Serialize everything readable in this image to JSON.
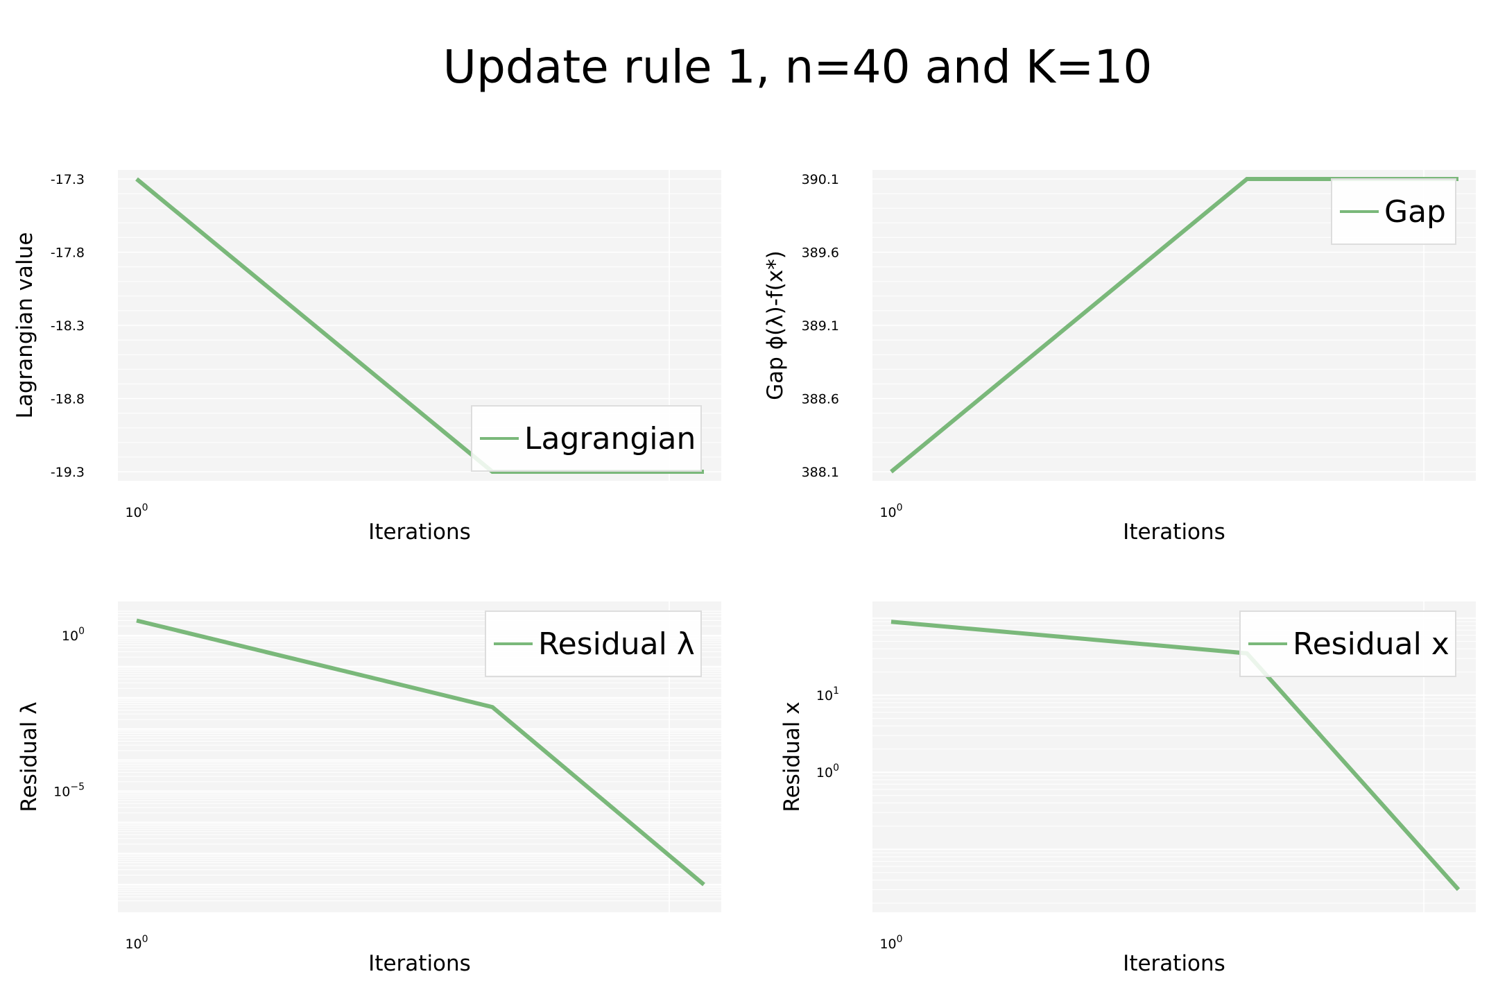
{
  "title": "Update rule 1, n=40 and K=10",
  "colors": {
    "line": "#7ab87a",
    "panel_bg": "#f4f4f4",
    "grid": "#ffffff"
  },
  "chart_data": [
    {
      "type": "line",
      "xlabel": "Iterations",
      "ylabel": "Lagrangian value",
      "xscale": "log",
      "yscale": "linear",
      "x_tick_labels": [
        "10^0"
      ],
      "y_tick_labels": [
        "-17.3",
        "-17.8",
        "-18.3",
        "-18.8",
        "-19.3"
      ],
      "ylim": [
        -19.3,
        -17.3
      ],
      "grid": true,
      "legend": "lower right",
      "series": [
        {
          "name": "Lagrangian",
          "x": [
            1,
            2,
            3
          ],
          "y": [
            -17.3,
            -19.3,
            -19.3
          ]
        }
      ]
    },
    {
      "type": "line",
      "xlabel": "Iterations",
      "ylabel": "Gap ϕ(λ)-f(x*)",
      "xscale": "log",
      "yscale": "linear",
      "x_tick_labels": [
        "10^0"
      ],
      "y_tick_labels": [
        "390.1",
        "389.6",
        "389.1",
        "388.6",
        "388.1"
      ],
      "ylim": [
        388.1,
        390.1
      ],
      "grid": true,
      "legend": "upper right",
      "series": [
        {
          "name": "Gap",
          "x": [
            1,
            2,
            3
          ],
          "y": [
            388.1,
            390.1,
            390.1
          ]
        }
      ]
    },
    {
      "type": "line",
      "xlabel": "Iterations",
      "ylabel": "Residual λ",
      "xscale": "log",
      "yscale": "log",
      "x_tick_labels": [
        "10^0"
      ],
      "y_tick_labels": [
        "10^0",
        "10^−5"
      ],
      "grid": true,
      "legend": "upper right",
      "series": [
        {
          "name": "Residual λ",
          "x": [
            1,
            2,
            3
          ],
          "y": [
            3,
            0.005,
            1e-08
          ]
        }
      ]
    },
    {
      "type": "line",
      "xlabel": "Iterations",
      "ylabel": "Residual x",
      "xscale": "log",
      "yscale": "log",
      "x_tick_labels": [
        "10^0"
      ],
      "y_tick_labels": [
        "10^1",
        "10^0"
      ],
      "grid": true,
      "legend": "upper right",
      "series": [
        {
          "name": "Residual x",
          "x": [
            1,
            2,
            3
          ],
          "y": [
            90,
            35,
            0.03
          ]
        }
      ]
    }
  ]
}
